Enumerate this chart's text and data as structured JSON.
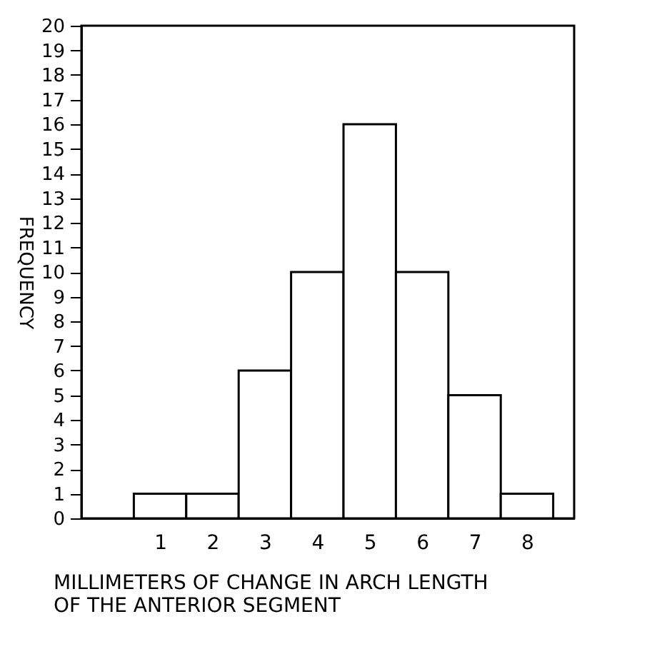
{
  "chart_data": {
    "type": "histogram",
    "xlabel": "MILLIMETERS OF CHANGE IN ARCH LENGTH\nOF THE ANTERIOR SEGMENT",
    "ylabel": "FREQUENCY",
    "bins": [
      0.5,
      1.5,
      2.5,
      3.5,
      4.5,
      5.5,
      6.5,
      7.5,
      8.5
    ],
    "values": [
      1,
      1,
      6,
      10,
      16,
      10,
      5,
      1
    ],
    "color": "#ffffff",
    "xlim": [
      -0.5,
      8.9
    ],
    "xticks": [
      1,
      2,
      3,
      4,
      5,
      6,
      7,
      8
    ],
    "ylim": [
      0,
      20
    ],
    "yticks": [
      0,
      1,
      2,
      3,
      4,
      5,
      6,
      7,
      8,
      9,
      10,
      11,
      12,
      13,
      14,
      15,
      16,
      17,
      18,
      19,
      20
    ],
    "grid": false
  }
}
